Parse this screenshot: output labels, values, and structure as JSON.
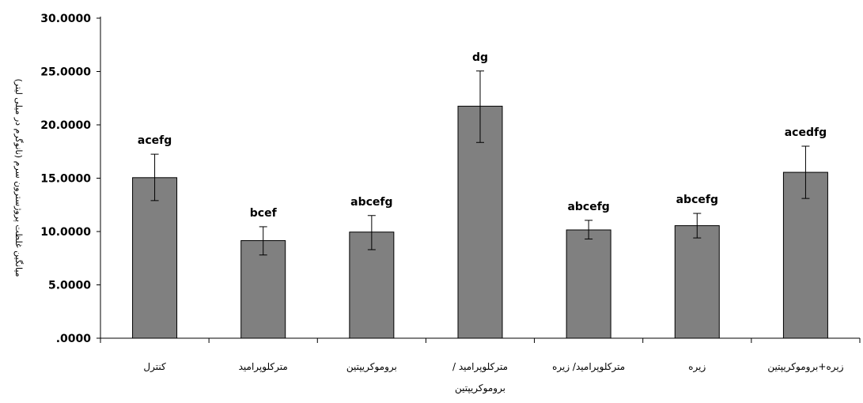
{
  "chart_data": {
    "type": "bar",
    "ylabel": "میانگین غلظت پروژسترون سرم (نانوگرم در میلی لیتر)",
    "ylim": [
      0,
      30
    ],
    "y_ticks": [
      ".0000",
      "5.0000",
      "10.0000",
      "15.0000",
      "20.0000",
      "25.0000",
      "30.0000"
    ],
    "grid": false,
    "bar_color": "#808080",
    "categories": [
      {
        "line1": "کنترل",
        "line2": ""
      },
      {
        "line1": "مترکلوپرامید",
        "line2": ""
      },
      {
        "line1": "بروموکریپتین",
        "line2": ""
      },
      {
        "line1": "مترکلوپرامید /",
        "line2": "بروموکریپتین"
      },
      {
        "line1": "مترکلوپرامید/ زیره",
        "line2": ""
      },
      {
        "line1": "زیره",
        "line2": ""
      },
      {
        "line1": "زیره+بروموکریپتین",
        "line2": ""
      }
    ],
    "values": [
      15.05,
      9.15,
      9.95,
      21.75,
      10.15,
      10.55,
      15.55
    ],
    "error_low": [
      12.9,
      7.8,
      8.3,
      18.35,
      9.3,
      9.4,
      13.1
    ],
    "error_high": [
      17.25,
      10.45,
      11.5,
      25.05,
      11.05,
      11.7,
      18.0
    ],
    "significance_labels": [
      "acefg",
      "bcef",
      "abcefg",
      "dg",
      "abcefg",
      "abcefg",
      "acedfg"
    ]
  }
}
